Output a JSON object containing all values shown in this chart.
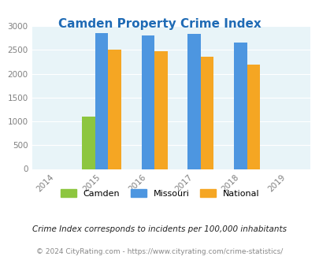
{
  "title": "Camden Property Crime Index",
  "years": [
    2014,
    2015,
    2016,
    2017,
    2018,
    2019
  ],
  "bar_years": [
    2015,
    2016,
    2017,
    2018
  ],
  "camden": [
    1100,
    null,
    null,
    null
  ],
  "missouri": [
    2850,
    2800,
    2830,
    2650
  ],
  "national": [
    2500,
    2470,
    2360,
    2185
  ],
  "camden_color": "#8DC63F",
  "missouri_color": "#4D96E0",
  "national_color": "#F5A623",
  "title_color": "#1F6BB5",
  "bg_color": "#E8F4F8",
  "ylim": [
    0,
    3000
  ],
  "yticks": [
    0,
    500,
    1000,
    1500,
    2000,
    2500,
    3000
  ],
  "footnote1": "Crime Index corresponds to incidents per 100,000 inhabitants",
  "footnote2": "© 2024 CityRating.com - https://www.cityrating.com/crime-statistics/",
  "legend_labels": [
    "Camden",
    "Missouri",
    "National"
  ]
}
